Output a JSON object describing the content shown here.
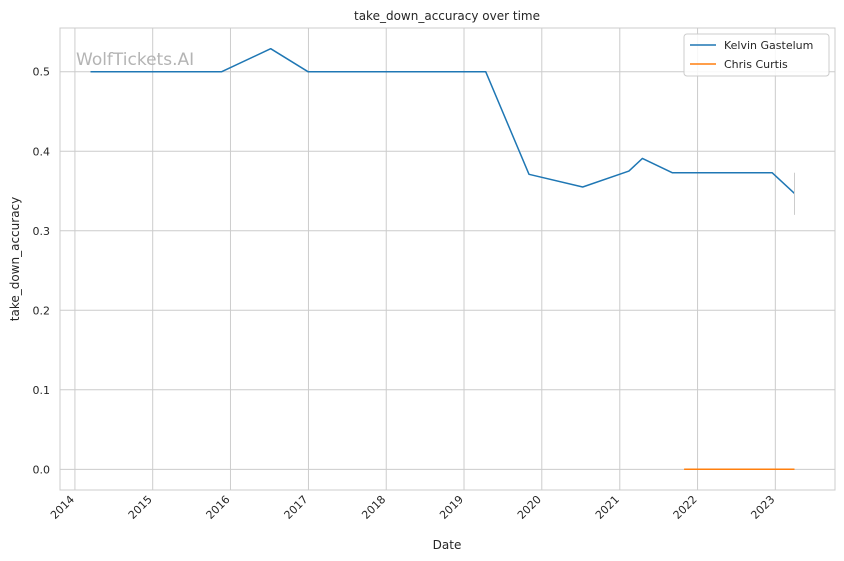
{
  "watermark": "WolfTickets.AI",
  "chart_data": {
    "type": "line",
    "title": "take_down_accuracy over time",
    "xlabel": "Date",
    "ylabel": "take_down_accuracy",
    "x_ticks": [
      "2014",
      "2015",
      "2016",
      "2017",
      "2018",
      "2019",
      "2020",
      "2021",
      "2022",
      "2023"
    ],
    "y_ticks": [
      "0.0",
      "0.1",
      "0.2",
      "0.3",
      "0.4",
      "0.5"
    ],
    "xlim": [
      "2013-10-23",
      "2023-10-08"
    ],
    "ylim": [
      -0.026,
      0.555
    ],
    "grid": true,
    "legend_position": "top-right",
    "series": [
      {
        "name": "Kelvin Gastelum",
        "color": "#1f77b4",
        "points": [
          {
            "x": "2014-03-15",
            "y": 0.5
          },
          {
            "x": "2015-11-21",
            "y": 0.5
          },
          {
            "x": "2016-07-08",
            "y": 0.529
          },
          {
            "x": "2016-12-30",
            "y": 0.5
          },
          {
            "x": "2019-04-13",
            "y": 0.5
          },
          {
            "x": "2019-11-02",
            "y": 0.371
          },
          {
            "x": "2020-07-11",
            "y": 0.355
          },
          {
            "x": "2021-02-13",
            "y": 0.375
          },
          {
            "x": "2021-04-17",
            "y": 0.391
          },
          {
            "x": "2021-09-04",
            "y": 0.373
          },
          {
            "x": "2022-12-17",
            "y": 0.373
          },
          {
            "x": "2023-04-01",
            "y": 0.347
          }
        ]
      },
      {
        "name": "Chris Curtis",
        "color": "#ff7f0e",
        "points": [
          {
            "x": "2021-10-30",
            "y": 0.0
          },
          {
            "x": "2023-04-01",
            "y": 0.0
          }
        ]
      }
    ],
    "error_band": {
      "x": "2023-04-01",
      "low": 0.32,
      "high": 0.373,
      "color": "#cccccc"
    }
  }
}
